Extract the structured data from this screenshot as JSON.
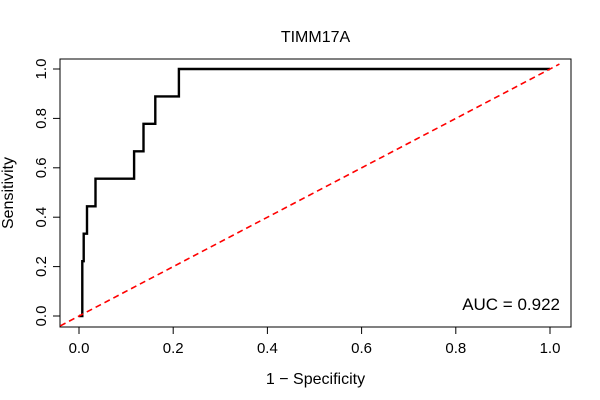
{
  "chart_data": {
    "type": "line",
    "title": "TIMM17A",
    "xlabel": "1 − Specificity",
    "ylabel": "Sensitivity",
    "xlim": [
      0,
      1
    ],
    "ylim": [
      0,
      1
    ],
    "x_ticks": [
      "0.0",
      "0.2",
      "0.4",
      "0.6",
      "0.8",
      "1.0"
    ],
    "y_ticks": [
      "0.0",
      "0.2",
      "0.4",
      "0.6",
      "0.8",
      "1.0"
    ],
    "grid": false,
    "annotation": "AUC = 0.922",
    "series": [
      {
        "color": "#000000",
        "style": "solid",
        "x": [
          0.0,
          0.007,
          0.007,
          0.01,
          0.01,
          0.017,
          0.017,
          0.035,
          0.035,
          0.117,
          0.117,
          0.137,
          0.137,
          0.162,
          0.162,
          0.212,
          0.212,
          1.0
        ],
        "y": [
          0.0,
          0.0,
          0.222,
          0.222,
          0.333,
          0.333,
          0.444,
          0.444,
          0.556,
          0.556,
          0.667,
          0.667,
          0.778,
          0.778,
          0.889,
          0.889,
          1.0,
          1.0
        ]
      },
      {
        "color": "#ff0000",
        "style": "dashed",
        "x": [
          0,
          1
        ],
        "y": [
          0,
          1
        ]
      }
    ]
  }
}
